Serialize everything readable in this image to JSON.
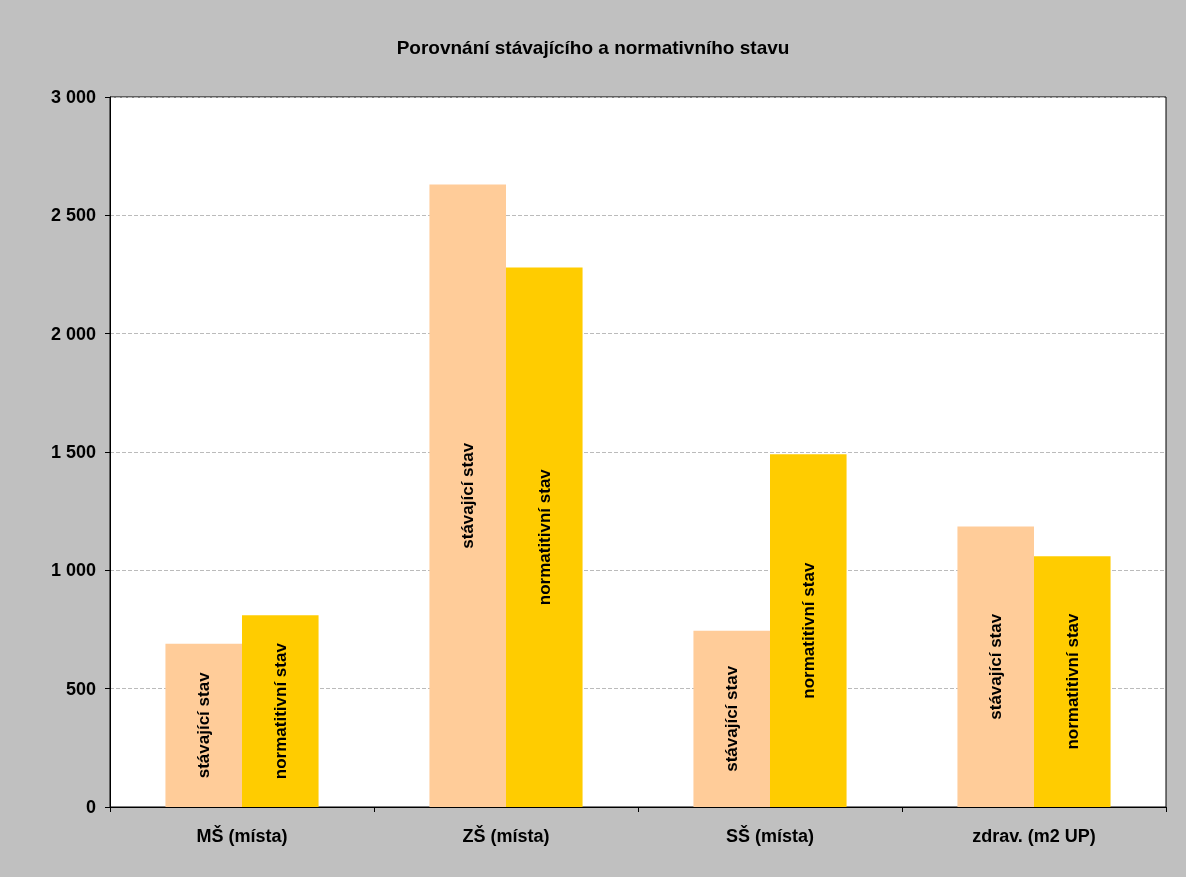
{
  "chart_data": {
    "type": "bar",
    "title": "Porovnání stávajícího a normativního stavu",
    "categories": [
      "MŠ (místa)",
      "ZŠ (místa)",
      "SŠ (místa)",
      "zdrav. (m2 UP)"
    ],
    "series": [
      {
        "name": "stávající stav",
        "color": "#ffcc99",
        "values": [
          690,
          2630,
          745,
          1185
        ]
      },
      {
        "name": "normatitivní stav",
        "color": "#ffcc00",
        "values": [
          810,
          2280,
          1490,
          1060
        ]
      }
    ],
    "ylim": [
      0,
      3000
    ],
    "yticks": [
      0,
      {
        "value": 500,
        "label": "500"
      },
      {
        "value": 1000,
        "label": "1 000"
      },
      {
        "value": 1500,
        "label": "1 500"
      },
      {
        "value": 2000,
        "label": "2 000"
      },
      {
        "value": 2500,
        "label": "2 500"
      },
      {
        "value": 3000,
        "label": "3 000"
      }
    ],
    "grid": "y",
    "legend": false
  }
}
